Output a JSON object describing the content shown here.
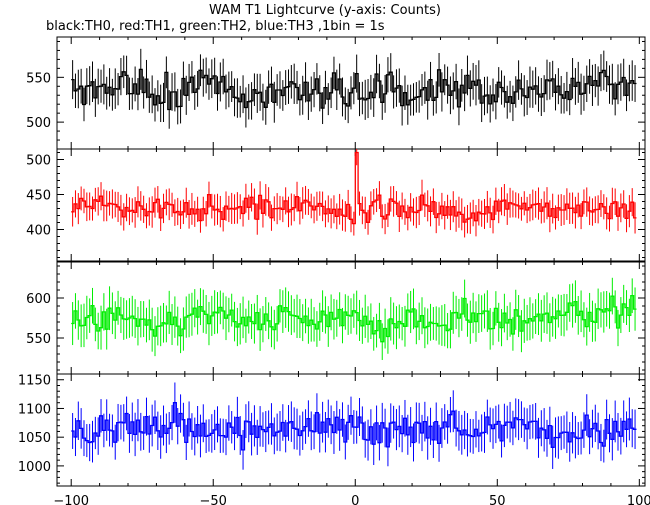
{
  "chart_data": {
    "type": "line",
    "title": "WAM T1 Lightcurve (y-axis: Counts)",
    "subtitle": "black:TH0, red:TH1, green:TH2, blue:TH3 ,1bin = 1s",
    "x_axis": {
      "range": [
        -105,
        102
      ],
      "ticks": [
        -100,
        -50,
        0,
        50,
        100
      ],
      "tick_labels": [
        "−100",
        "−50",
        "0",
        "50",
        "100"
      ]
    },
    "panels": [
      {
        "name": "TH0",
        "color": "#000000",
        "ylim": [
          470,
          595
        ],
        "yticks": [
          500,
          550
        ],
        "approx_mean": 535,
        "approx_noise": 22,
        "approx_error": 20,
        "spike": null
      },
      {
        "name": "TH1",
        "color": "#ff0000",
        "ylim": [
          355,
          515
        ],
        "yticks": [
          400,
          450,
          500
        ],
        "approx_mean": 430,
        "approx_noise": 18,
        "approx_error": 20,
        "spike": {
          "x": 0,
          "y": 510
        }
      },
      {
        "name": "TH2",
        "color": "#00ee00",
        "ylim": [
          505,
          645
        ],
        "yticks": [
          550,
          600
        ],
        "approx_mean": 575,
        "approx_noise": 20,
        "approx_error": 24,
        "spike": null
      },
      {
        "name": "TH3",
        "color": "#0000ff",
        "ylim": [
          965,
          1160
        ],
        "yticks": [
          1000,
          1050,
          1100,
          1150
        ],
        "approx_mean": 1065,
        "approx_noise": 30,
        "approx_error": 33,
        "spike": null
      }
    ],
    "grid": false,
    "legend": "none"
  }
}
